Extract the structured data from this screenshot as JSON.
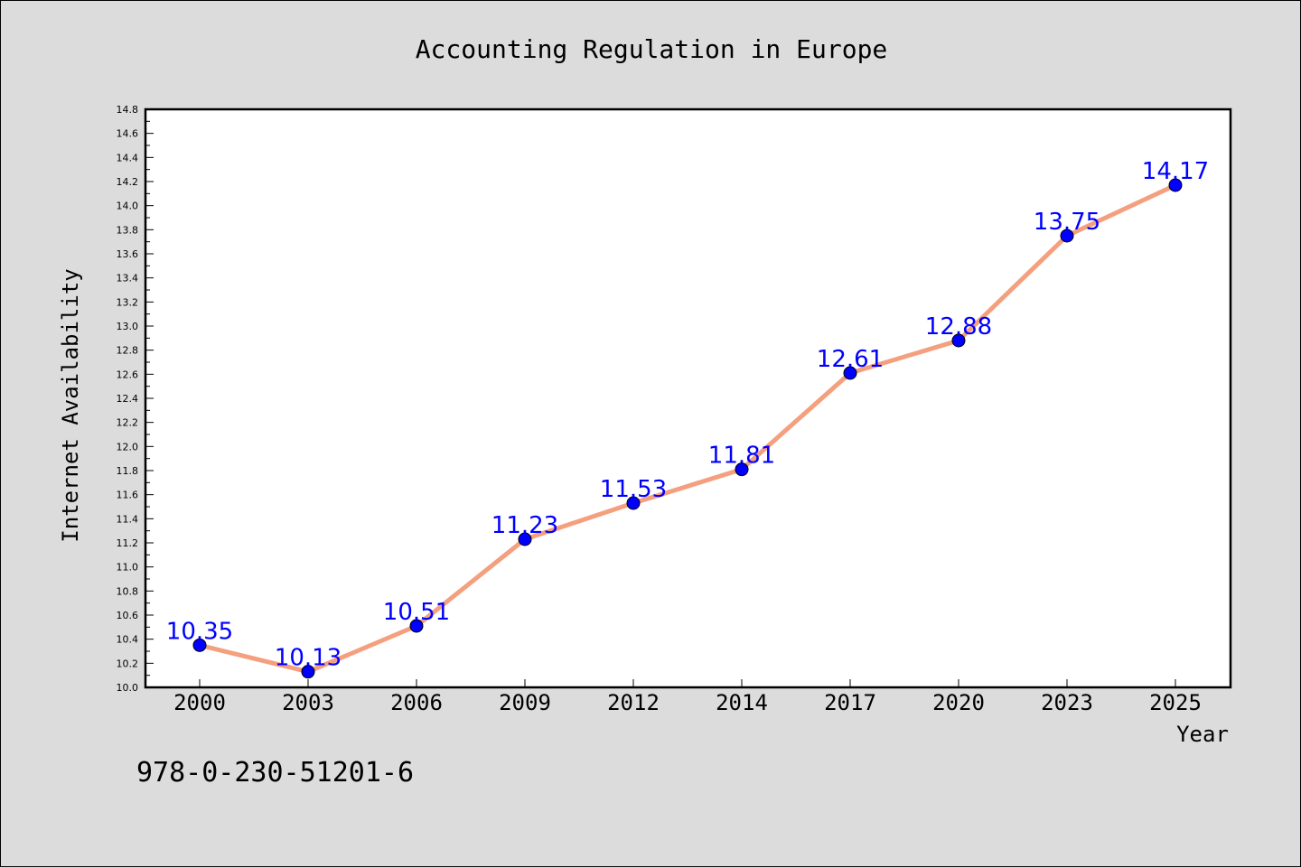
{
  "chart_data": {
    "type": "line",
    "title": "Accounting Regulation in Europe",
    "xlabel": "Year",
    "ylabel": "Internet Availability",
    "categories": [
      "2000",
      "2003",
      "2006",
      "2009",
      "2012",
      "2014",
      "2017",
      "2020",
      "2023",
      "2025"
    ],
    "series": [
      {
        "values": [
          10.35,
          10.13,
          10.51,
          11.23,
          11.53,
          11.81,
          12.61,
          12.88,
          13.75,
          14.17
        ],
        "line_color": "#f4a07f",
        "marker_color": "#0000ff"
      }
    ],
    "data_labels": [
      "10.35",
      "10.13",
      "10.51",
      "11.23",
      "11.53",
      "11.81",
      "12.61",
      "12.88",
      "13.75",
      "14.17"
    ],
    "data_label_color": "#0000ff",
    "ylim": [
      10.0,
      14.8
    ],
    "yticks": [
      "10.0",
      "10.2",
      "10.4",
      "10.6",
      "10.8",
      "11.0",
      "11.2",
      "11.4",
      "11.6",
      "11.8",
      "12.0",
      "12.2",
      "12.4",
      "12.6",
      "12.8",
      "13.0",
      "13.2",
      "13.4",
      "13.6",
      "13.8",
      "14.0",
      "14.2",
      "14.4",
      "14.6",
      "14.8"
    ],
    "grid": false,
    "background_color": "#dcdcdc",
    "plot_background_color": "#ffffff"
  },
  "footnote": "978-0-230-51201-6"
}
